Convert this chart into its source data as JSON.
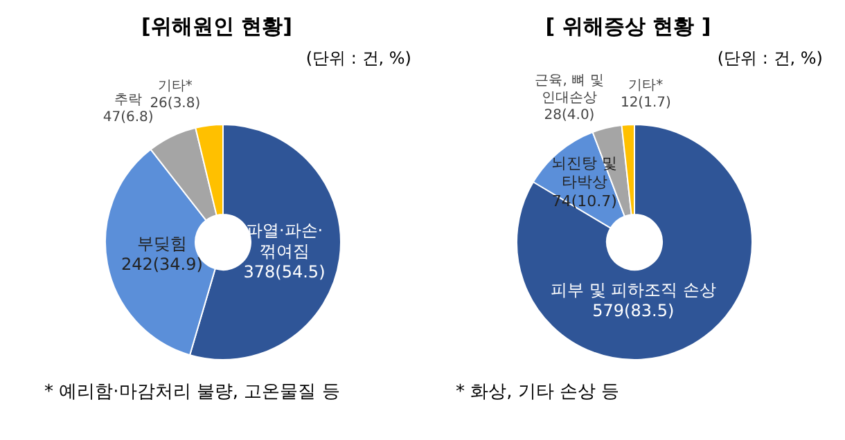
{
  "chart_data": [
    {
      "type": "donut",
      "title": "[위해원인 현황]",
      "subtitle": "(단위 : 건, %)",
      "categories": [
        "파열·파손·\n꺾여짐",
        "부딪힘",
        "추락",
        "기타*"
      ],
      "values": [
        378,
        242,
        47,
        26
      ],
      "value_labels": [
        "378(54.5)",
        "242(34.9)",
        "47(6.8)",
        "26(3.8)"
      ],
      "colors": [
        "#2f5597",
        "#5b8fd9",
        "#a5a5a5",
        "#ffc000"
      ],
      "annotations": [
        "* 예리함·마감처리 불량, 고온물질 등"
      ],
      "legend": false
    },
    {
      "type": "donut",
      "title": "[ 위해증상 현황 ]",
      "subtitle": "(단위 : 건, %)",
      "categories": [
        "피부 및 피하조직 손상",
        "뇌진탕 및\n타박상",
        "근육, 뼈 및\n인대손상",
        "기타*"
      ],
      "values": [
        579,
        74,
        28,
        12
      ],
      "value_labels": [
        "579(83.5)",
        "74(10.7)",
        "28(4.0)",
        "12(1.7)"
      ],
      "colors": [
        "#2f5597",
        "#5b8fd9",
        "#a5a5a5",
        "#ffc000"
      ],
      "annotations": [
        "* 화상, 기타 손상 등"
      ],
      "legend": false
    }
  ]
}
